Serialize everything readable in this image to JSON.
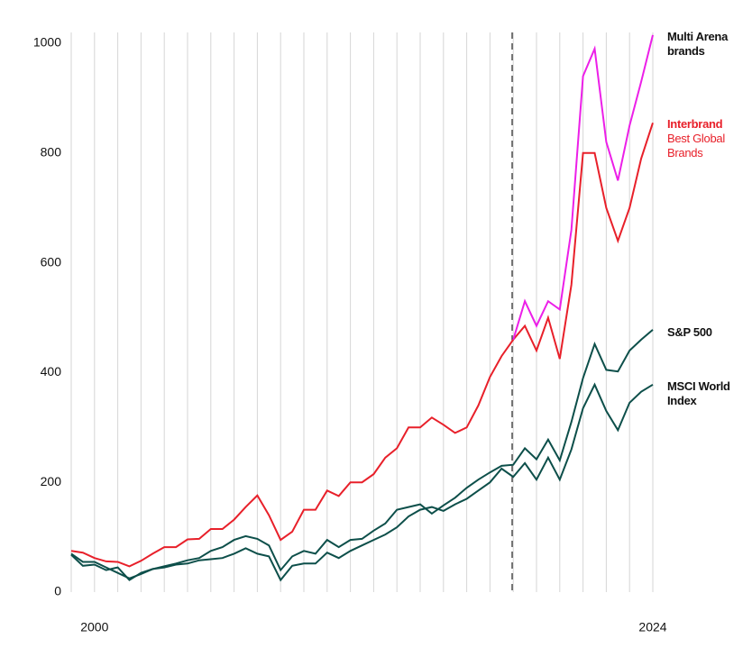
{
  "chart_data": {
    "type": "line",
    "categories": [
      null,
      null,
      "2000",
      null,
      null,
      null,
      null,
      null,
      null,
      null,
      null,
      null,
      null,
      null,
      null,
      null,
      null,
      null,
      null,
      null,
      null,
      null,
      null,
      null,
      null,
      null,
      null,
      null,
      null,
      null,
      null,
      null,
      null,
      null,
      null,
      null,
      null,
      null,
      null,
      null,
      null,
      null,
      null,
      null,
      null,
      null,
      null,
      null,
      null,
      null,
      "2024"
    ],
    "series": [
      {
        "name": "Multi Arena brands",
        "color": "#ec1fe8",
        "values": [
          null,
          null,
          null,
          null,
          null,
          null,
          null,
          null,
          null,
          null,
          null,
          null,
          null,
          null,
          null,
          null,
          null,
          null,
          null,
          null,
          null,
          null,
          null,
          null,
          null,
          null,
          null,
          null,
          null,
          null,
          null,
          null,
          null,
          null,
          null,
          null,
          null,
          null,
          460,
          530,
          485,
          530,
          515,
          660,
          940,
          990,
          820,
          750,
          850,
          930,
          1015
        ]
      },
      {
        "name": "Interbrand Best Global Brands",
        "color": "#e8202a",
        "values": [
          75,
          72,
          62,
          56,
          55,
          47,
          57,
          70,
          82,
          82,
          96,
          97,
          115,
          115,
          132,
          155,
          176,
          140,
          95,
          110,
          150,
          150,
          185,
          175,
          200,
          200,
          215,
          245,
          262,
          300,
          300,
          318,
          305,
          290,
          300,
          340,
          392,
          430,
          460,
          485,
          440,
          500,
          425,
          560,
          800,
          800,
          700,
          640,
          700,
          790,
          855
        ]
      },
      {
        "name": "S&P 500",
        "color": "#0d4f4a",
        "values": [
          70,
          55,
          55,
          45,
          35,
          25,
          33,
          42,
          47,
          52,
          58,
          62,
          75,
          82,
          95,
          102,
          97,
          85,
          40,
          65,
          75,
          70,
          95,
          82,
          95,
          97,
          112,
          125,
          150,
          155,
          160,
          143,
          158,
          172,
          190,
          205,
          218,
          230,
          232,
          262,
          242,
          278,
          240,
          310,
          390,
          452,
          405,
          402,
          440,
          460,
          478
        ]
      },
      {
        "name": "MSCI World Index",
        "color": "#0d4f4a",
        "values": [
          68,
          48,
          50,
          40,
          45,
          22,
          35,
          42,
          45,
          50,
          52,
          58,
          60,
          62,
          70,
          80,
          70,
          65,
          22,
          48,
          52,
          52,
          72,
          62,
          75,
          85,
          95,
          105,
          118,
          138,
          150,
          155,
          148,
          160,
          170,
          185,
          200,
          225,
          210,
          235,
          205,
          245,
          205,
          260,
          335,
          378,
          330,
          295,
          345,
          365,
          378
        ]
      }
    ],
    "ylim": [
      0,
      1000
    ],
    "yticks": [
      0,
      200,
      400,
      600,
      800,
      1000
    ]
  }
}
